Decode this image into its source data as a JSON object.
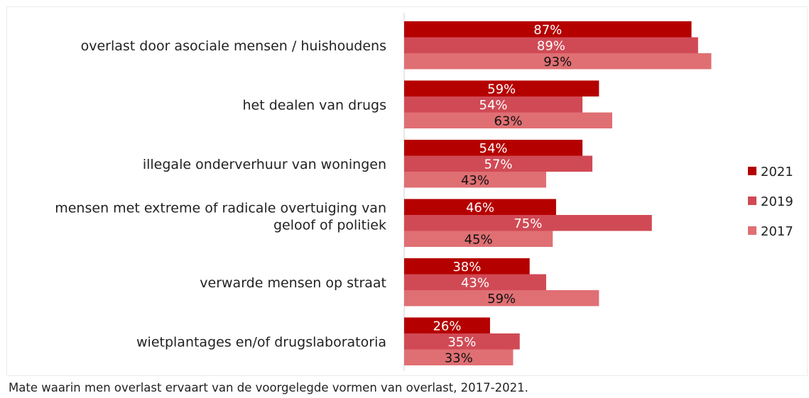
{
  "caption": "Mate waarin men overlast ervaart van de voorgelegde vormen van overlast, 2017-2021.",
  "chart_data": {
    "type": "bar",
    "orientation": "horizontal",
    "categories": [
      [
        "overlast door asociale mensen /  huishoudens"
      ],
      [
        "het dealen van drugs"
      ],
      [
        "illegale onderverhuur van woningen"
      ],
      [
        "mensen met extreme of radicale overtuiging van",
        "geloof of politiek"
      ],
      [
        "verwarde mensen op straat"
      ],
      [
        "wietplantages en/of drugslaboratoria"
      ]
    ],
    "series": [
      {
        "name": "2021",
        "color": "#b50000",
        "label_color": "#ffffff",
        "values": [
          87,
          59,
          54,
          46,
          38,
          26
        ]
      },
      {
        "name": "2019",
        "color": "#d04a55",
        "label_color": "#ffffff",
        "values": [
          89,
          54,
          57,
          75,
          43,
          35
        ]
      },
      {
        "name": "2017",
        "color": "#df6f73",
        "label_color": "#111111",
        "values": [
          93,
          63,
          43,
          45,
          59,
          33
        ]
      }
    ],
    "value_suffix": "%",
    "xlim": [
      0,
      100
    ],
    "grid": false,
    "legend_position": "right"
  }
}
